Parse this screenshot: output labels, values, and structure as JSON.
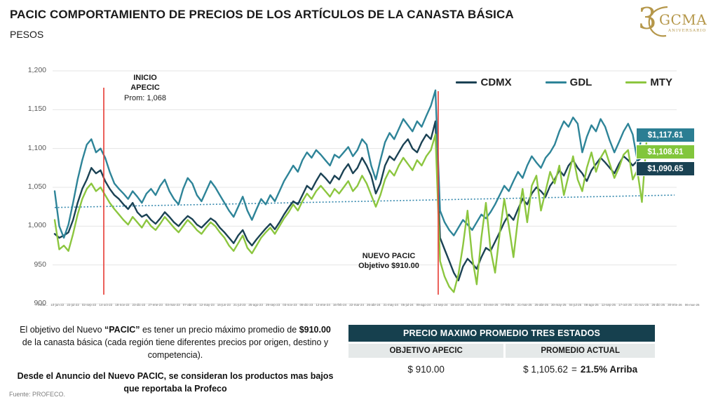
{
  "header": {
    "title": "PACIC COMPORTAMIENTO DE PRECIOS DE LOS ARTÍCULOS DE LA CANASTA BÁSICA",
    "subtitle": "PESOS",
    "logo": {
      "number": "3",
      "name": "GCMA",
      "tagline": "ANIVERSARIO",
      "color": "#b5974a"
    }
  },
  "chart_data": {
    "type": "line",
    "title": "PACIC comportamiento de precios de la canasta básica (pesos)",
    "ylabel": "Pesos",
    "ylim": [
      900,
      1200
    ],
    "ytick_labels": [
      "1,200",
      "1,150",
      "1,100",
      "1,050",
      "1,000",
      "950",
      "900"
    ],
    "grid": "horizontal",
    "legend_position": "top-right",
    "x_tick_labels": [
      "Inicio...",
      "10-jun-22",
      "22-jul-22",
      "02-sep-22",
      "14-oct-22",
      "18-nov-22",
      "23-dic-22",
      "27-ene-23",
      "03-mar-23",
      "07-abr-23",
      "12-may-23",
      "16-jun-23",
      "21-jul-23",
      "25-ago-23",
      "29-sep-23",
      "03-nov-23",
      "08-dic-23",
      "12-ene-24",
      "16-feb-24",
      "22-mar-24",
      "26-abr-24",
      "31-may-24",
      "05-jul-24",
      "09-ago-24",
      "13-sep-24",
      "18-oct-24",
      "22-nov-24",
      "03-ene-25",
      "07-feb-25",
      "21-mar-25",
      "25-abr-25",
      "30-may-25",
      "04-jul-25",
      "08-ago-25",
      "12-sep-25",
      "17-oct-25",
      "21-nov-25",
      "26-dic-25",
      "30-ene-26",
      "06-mar-26"
    ],
    "series": [
      {
        "name": "CDMX",
        "color": "#1b4254",
        "final_value": "$1,090.65",
        "values": [
          990,
          985,
          988,
          992,
          1008,
          1030,
          1048,
          1060,
          1075,
          1068,
          1072,
          1058,
          1048,
          1040,
          1035,
          1028,
          1022,
          1030,
          1018,
          1012,
          1015,
          1008,
          1003,
          1010,
          1018,
          1012,
          1005,
          1000,
          1007,
          1013,
          1009,
          1002,
          998,
          1004,
          1010,
          1006,
          998,
          992,
          985,
          978,
          988,
          995,
          982,
          975,
          983,
          990,
          997,
          1003,
          996,
          1005,
          1015,
          1024,
          1032,
          1028,
          1040,
          1052,
          1047,
          1058,
          1068,
          1062,
          1055,
          1065,
          1060,
          1072,
          1080,
          1068,
          1075,
          1088,
          1078,
          1065,
          1042,
          1055,
          1078,
          1090,
          1085,
          1095,
          1105,
          1112,
          1100,
          1095,
          1108,
          1118,
          1112,
          1135,
          985,
          970,
          955,
          940,
          930,
          948,
          958,
          952,
          945,
          960,
          972,
          968,
          980,
          992,
          1005,
          1015,
          1008,
          1022,
          1035,
          1028,
          1042,
          1050,
          1045,
          1038,
          1052,
          1060,
          1072,
          1065,
          1078,
          1085,
          1075,
          1068,
          1058,
          1072,
          1080,
          1088,
          1082,
          1075,
          1068,
          1080,
          1090,
          1085,
          1078,
          1084,
          1088,
          1090.65
        ]
      },
      {
        "name": "GDL",
        "color": "#2e8498",
        "final_value": "$1,117.61",
        "values": [
          1045,
          1000,
          985,
          1002,
          1030,
          1060,
          1085,
          1105,
          1112,
          1095,
          1100,
          1088,
          1070,
          1055,
          1048,
          1042,
          1035,
          1045,
          1038,
          1030,
          1042,
          1048,
          1040,
          1052,
          1060,
          1045,
          1035,
          1028,
          1048,
          1062,
          1055,
          1040,
          1032,
          1045,
          1058,
          1050,
          1040,
          1030,
          1020,
          1012,
          1025,
          1038,
          1020,
          1008,
          1022,
          1035,
          1028,
          1040,
          1032,
          1045,
          1058,
          1068,
          1078,
          1070,
          1085,
          1095,
          1088,
          1098,
          1092,
          1085,
          1078,
          1092,
          1088,
          1095,
          1102,
          1090,
          1098,
          1112,
          1105,
          1078,
          1060,
          1085,
          1108,
          1120,
          1112,
          1125,
          1138,
          1130,
          1122,
          1135,
          1128,
          1142,
          1155,
          1175,
          1020,
          1005,
          995,
          988,
          998,
          1008,
          1002,
          995,
          1005,
          1015,
          1010,
          1018,
          1028,
          1040,
          1052,
          1045,
          1058,
          1070,
          1062,
          1078,
          1090,
          1082,
          1075,
          1088,
          1095,
          1105,
          1122,
          1135,
          1128,
          1140,
          1132,
          1095,
          1115,
          1130,
          1122,
          1138,
          1128,
          1110,
          1095,
          1108,
          1122,
          1132,
          1118,
          1085,
          1118,
          1117.61
        ]
      },
      {
        "name": "MTY",
        "color": "#8cc63f",
        "final_value": "$1,108.61",
        "values": [
          1008,
          970,
          975,
          968,
          990,
          1015,
          1035,
          1048,
          1055,
          1045,
          1050,
          1040,
          1030,
          1022,
          1015,
          1008,
          1002,
          1012,
          1005,
          998,
          1008,
          1000,
          995,
          1003,
          1012,
          1005,
          998,
          992,
          1000,
          1008,
          1002,
          995,
          990,
          998,
          1005,
          1000,
          992,
          985,
          975,
          968,
          978,
          988,
          972,
          965,
          975,
          985,
          992,
          998,
          990,
          1000,
          1010,
          1018,
          1028,
          1020,
          1032,
          1042,
          1035,
          1045,
          1052,
          1045,
          1038,
          1048,
          1042,
          1050,
          1058,
          1045,
          1052,
          1065,
          1055,
          1040,
          1025,
          1040,
          1060,
          1072,
          1065,
          1078,
          1088,
          1080,
          1072,
          1085,
          1078,
          1090,
          1098,
          1118,
          955,
          935,
          922,
          915,
          938,
          975,
          1020,
          960,
          925,
          985,
          1030,
          970,
          940,
          990,
          1035,
          1000,
          960,
          1010,
          1048,
          1005,
          1052,
          1065,
          1020,
          1045,
          1070,
          1055,
          1078,
          1040,
          1065,
          1090,
          1060,
          1045,
          1075,
          1095,
          1070,
          1088,
          1098,
          1080,
          1062,
          1075,
          1092,
          1098,
          1060,
          1072,
          1031,
          1108.61
        ]
      }
    ],
    "trend_line": {
      "style": "dotted",
      "color": "#3488ad",
      "start": 1024,
      "end": 1040
    },
    "events": [
      {
        "at": 10.7,
        "color": "#e8453e",
        "lines": [
          "INICIO",
          "APECIC"
        ],
        "note": "Prom: 1,068"
      },
      {
        "at": 83.6,
        "color": "#e8453e",
        "lines": [
          "NUEVO PACIC"
        ],
        "note": "Objetivo $910.00"
      }
    ],
    "end_labels": [
      {
        "text": "$1,117.61",
        "color": "#2b7e93"
      },
      {
        "text": "$1,108.61",
        "color": "#82c63c"
      },
      {
        "text": "$1,090.65",
        "color": "#1a4253"
      }
    ]
  },
  "notes": {
    "p1_a": "El objetivo del Nuevo ",
    "p1_b": "“PACIC”",
    "p1_c": " es tener un precio máximo promedio de ",
    "p1_d": "$910.00",
    "p1_e": " de la canasta básica (cada región tiene diferentes precios por origen, destino y competencia).",
    "p2": "Desde el Anuncio del Nuevo PACIC, se consideran los productos mas bajos que reportaba la Profeco"
  },
  "table": {
    "title": "PRECIO MAXIMO PROMEDIO TRES ESTADOS",
    "col1_header": "OBJETIVO APECIC",
    "col2_header": "PROMEDIO ACTUAL",
    "col1_value": "$ 910.00",
    "col2_value": "$ 1,105.62",
    "col2_equals": "=",
    "col2_delta": "21.5% Arriba",
    "header_bg": "#16404e"
  },
  "source": "Fuente: PROFECO."
}
